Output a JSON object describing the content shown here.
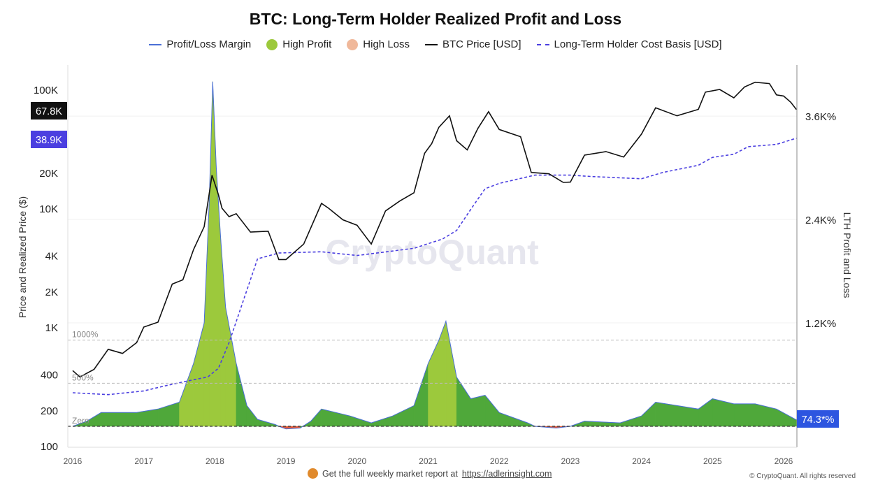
{
  "chart_data": {
    "type": "line",
    "title": "BTC: Long-Term Holder Realized Profit and Loss",
    "legend": [
      "Profit/Loss Margin",
      "High Profit",
      "High Loss",
      "BTC Price [USD]",
      "Long-Term Holder Cost Basis [USD]"
    ],
    "legend_placement": "top",
    "colors": {
      "margin": "#4a6fd6",
      "high_profit": "#9cc93c",
      "profit": "#4fa83a",
      "high_loss": "#f0b89a",
      "loss": "#e05a3a",
      "price": "#111111",
      "cost_basis": "#4b3fe0",
      "price_tag": "#111111",
      "cost_tag": "#4b3fe0",
      "margin_tag": "#2d55e0"
    },
    "ylabel_left": "Price and Realized Price ($)",
    "ylabel_right": "LTH Profit and Loss",
    "left_scale": "log",
    "left_ylim": [
      100,
      130000
    ],
    "left_ticks": [
      "100",
      "200",
      "400",
      "1K",
      "2K",
      "4K",
      "10K",
      "20K",
      "100K"
    ],
    "left_tick_values": [
      100,
      200,
      400,
      1000,
      2000,
      4000,
      10000,
      20000,
      100000
    ],
    "right_ylim": [
      -250,
      4150
    ],
    "right_ticks": [
      "1.2K%",
      "2.4K%",
      "3.6K%"
    ],
    "right_tick_values": [
      1200,
      2400,
      3600
    ],
    "xlim": [
      2015.93,
      2026.18
    ],
    "x_ticks": [
      "2016",
      "2017",
      "2018",
      "2019",
      "2020",
      "2021",
      "2022",
      "2023",
      "2024",
      "2025",
      "2026"
    ],
    "reference_lines": [
      {
        "label": "1000%",
        "value": 1000
      },
      {
        "label": "500%",
        "value": 500
      },
      {
        "label": "Zero",
        "value": 0
      }
    ],
    "last_values": {
      "price": "67.8K",
      "cost_basis": "38.9K",
      "margin": "74.3*%"
    },
    "watermark": "CryptoQuant",
    "price": {
      "x": [
        2016.0,
        2016.1,
        2016.3,
        2016.5,
        2016.7,
        2016.9,
        2017.0,
        2017.2,
        2017.4,
        2017.55,
        2017.7,
        2017.85,
        2017.96,
        2018.05,
        2018.1,
        2018.2,
        2018.3,
        2018.5,
        2018.75,
        2018.9,
        2019.0,
        2019.25,
        2019.5,
        2019.6,
        2019.8,
        2020.0,
        2020.2,
        2020.4,
        2020.6,
        2020.8,
        2020.95,
        2021.05,
        2021.15,
        2021.3,
        2021.4,
        2021.55,
        2021.7,
        2021.85,
        2022.0,
        2022.3,
        2022.45,
        2022.7,
        2022.9,
        2023.0,
        2023.2,
        2023.5,
        2023.75,
        2024.0,
        2024.2,
        2024.5,
        2024.8,
        2024.9,
        2025.1,
        2025.3,
        2025.45,
        2025.6,
        2025.8,
        2025.9,
        2026.0,
        2026.1,
        2026.18
      ],
      "y": [
        430,
        380,
        440,
        650,
        600,
        740,
        1000,
        1100,
        2300,
        2500,
        4500,
        7000,
        19000,
        13000,
        10000,
        8500,
        9000,
        6300,
        6400,
        3700,
        3700,
        5000,
        11000,
        10000,
        8000,
        7200,
        5000,
        9500,
        11500,
        13500,
        29000,
        35000,
        48000,
        60000,
        37000,
        31000,
        47000,
        65000,
        46000,
        40000,
        20000,
        19500,
        16500,
        16600,
        28000,
        30000,
        27000,
        42000,
        70000,
        60000,
        68000,
        95000,
        100000,
        85000,
        105000,
        115000,
        112000,
        90000,
        88000,
        78000,
        67800
      ]
    },
    "cost_basis": {
      "x": [
        2016.0,
        2016.5,
        2017.0,
        2017.3,
        2017.6,
        2017.9,
        2018.05,
        2018.2,
        2018.4,
        2018.6,
        2018.9,
        2019.5,
        2020.0,
        2020.8,
        2021.2,
        2021.4,
        2021.6,
        2021.8,
        2022.0,
        2022.5,
        2023.0,
        2023.3,
        2024.0,
        2024.3,
        2024.8,
        2025.0,
        2025.3,
        2025.5,
        2025.9,
        2026.18
      ],
      "y": [
        280,
        270,
        290,
        320,
        350,
        380,
        450,
        740,
        1670,
        3750,
        4200,
        4300,
        4000,
        4600,
        5500,
        6500,
        9800,
        14600,
        16200,
        19000,
        19000,
        18500,
        17700,
        20000,
        23000,
        26800,
        28500,
        33000,
        34500,
        38900
      ]
    },
    "margin": {
      "x": [
        2016.0,
        2016.2,
        2016.4,
        2016.9,
        2017.2,
        2017.5,
        2017.7,
        2017.85,
        2017.92,
        2017.97,
        2018.02,
        2018.08,
        2018.15,
        2018.3,
        2018.45,
        2018.6,
        2018.85,
        2018.9,
        2019.0,
        2019.2,
        2019.35,
        2019.5,
        2019.9,
        2020.2,
        2020.5,
        2020.8,
        2021.0,
        2021.15,
        2021.25,
        2021.4,
        2021.6,
        2021.8,
        2022.0,
        2022.4,
        2022.5,
        2022.8,
        2023.0,
        2023.2,
        2023.7,
        2024.0,
        2024.2,
        2024.5,
        2024.8,
        2025.0,
        2025.3,
        2025.6,
        2025.9,
        2026.18
      ],
      "y": [
        0,
        60,
        160,
        160,
        200,
        280,
        730,
        1200,
        2600,
        4000,
        3000,
        2200,
        1380,
        730,
        240,
        80,
        20,
        0,
        -30,
        -20,
        60,
        200,
        120,
        40,
        120,
        240,
        730,
        1000,
        1220,
        570,
        320,
        360,
        160,
        40,
        0,
        -20,
        0,
        60,
        40,
        120,
        280,
        240,
        200,
        320,
        260,
        260,
        200,
        74.3
      ]
    }
  },
  "footer": {
    "text": "Get the full weekly market report at",
    "link": "https://adlerinsight.com",
    "copyright": "© CryptoQuant. All rights reserved"
  }
}
